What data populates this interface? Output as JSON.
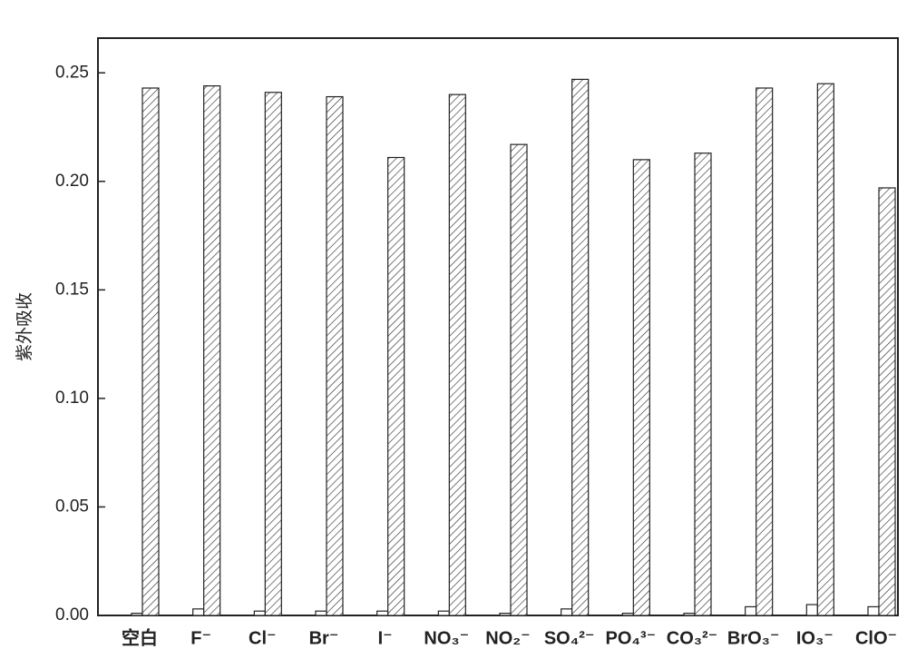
{
  "chart_data": {
    "type": "bar",
    "y_label": "紫外吸收",
    "categories": [
      "空白",
      "F⁻",
      "Cl⁻",
      "Br⁻",
      "I⁻",
      "NO₃⁻",
      "NO₂⁻",
      "SO₄²⁻",
      "PO₄³⁻",
      "CO₃²⁻",
      "BrO₃⁻",
      "IO₃⁻",
      "ClO⁻"
    ],
    "series": [
      {
        "color": "#ffffff",
        "values": [
          0.001,
          0.003,
          0.002,
          0.002,
          0.002,
          0.002,
          0.001,
          0.003,
          0.001,
          0.001,
          0.004,
          0.005,
          0.004
        ]
      },
      {
        "color": "#ffffff",
        "hatch": true,
        "values": [
          0.243,
          0.244,
          0.241,
          0.239,
          0.211,
          0.24,
          0.217,
          0.247,
          0.21,
          0.213,
          0.243,
          0.245,
          0.197
        ]
      }
    ],
    "ylim": [
      0,
      0.266
    ],
    "yticks": [
      {
        "value": 0,
        "label": "0.00"
      },
      {
        "value": 0.05,
        "label": "0.05"
      },
      {
        "value": 0.1,
        "label": "0.10"
      },
      0.15,
      {
        "value": 0.2,
        "label": "0.20"
      },
      0.25
    ],
    "grid": false
  }
}
